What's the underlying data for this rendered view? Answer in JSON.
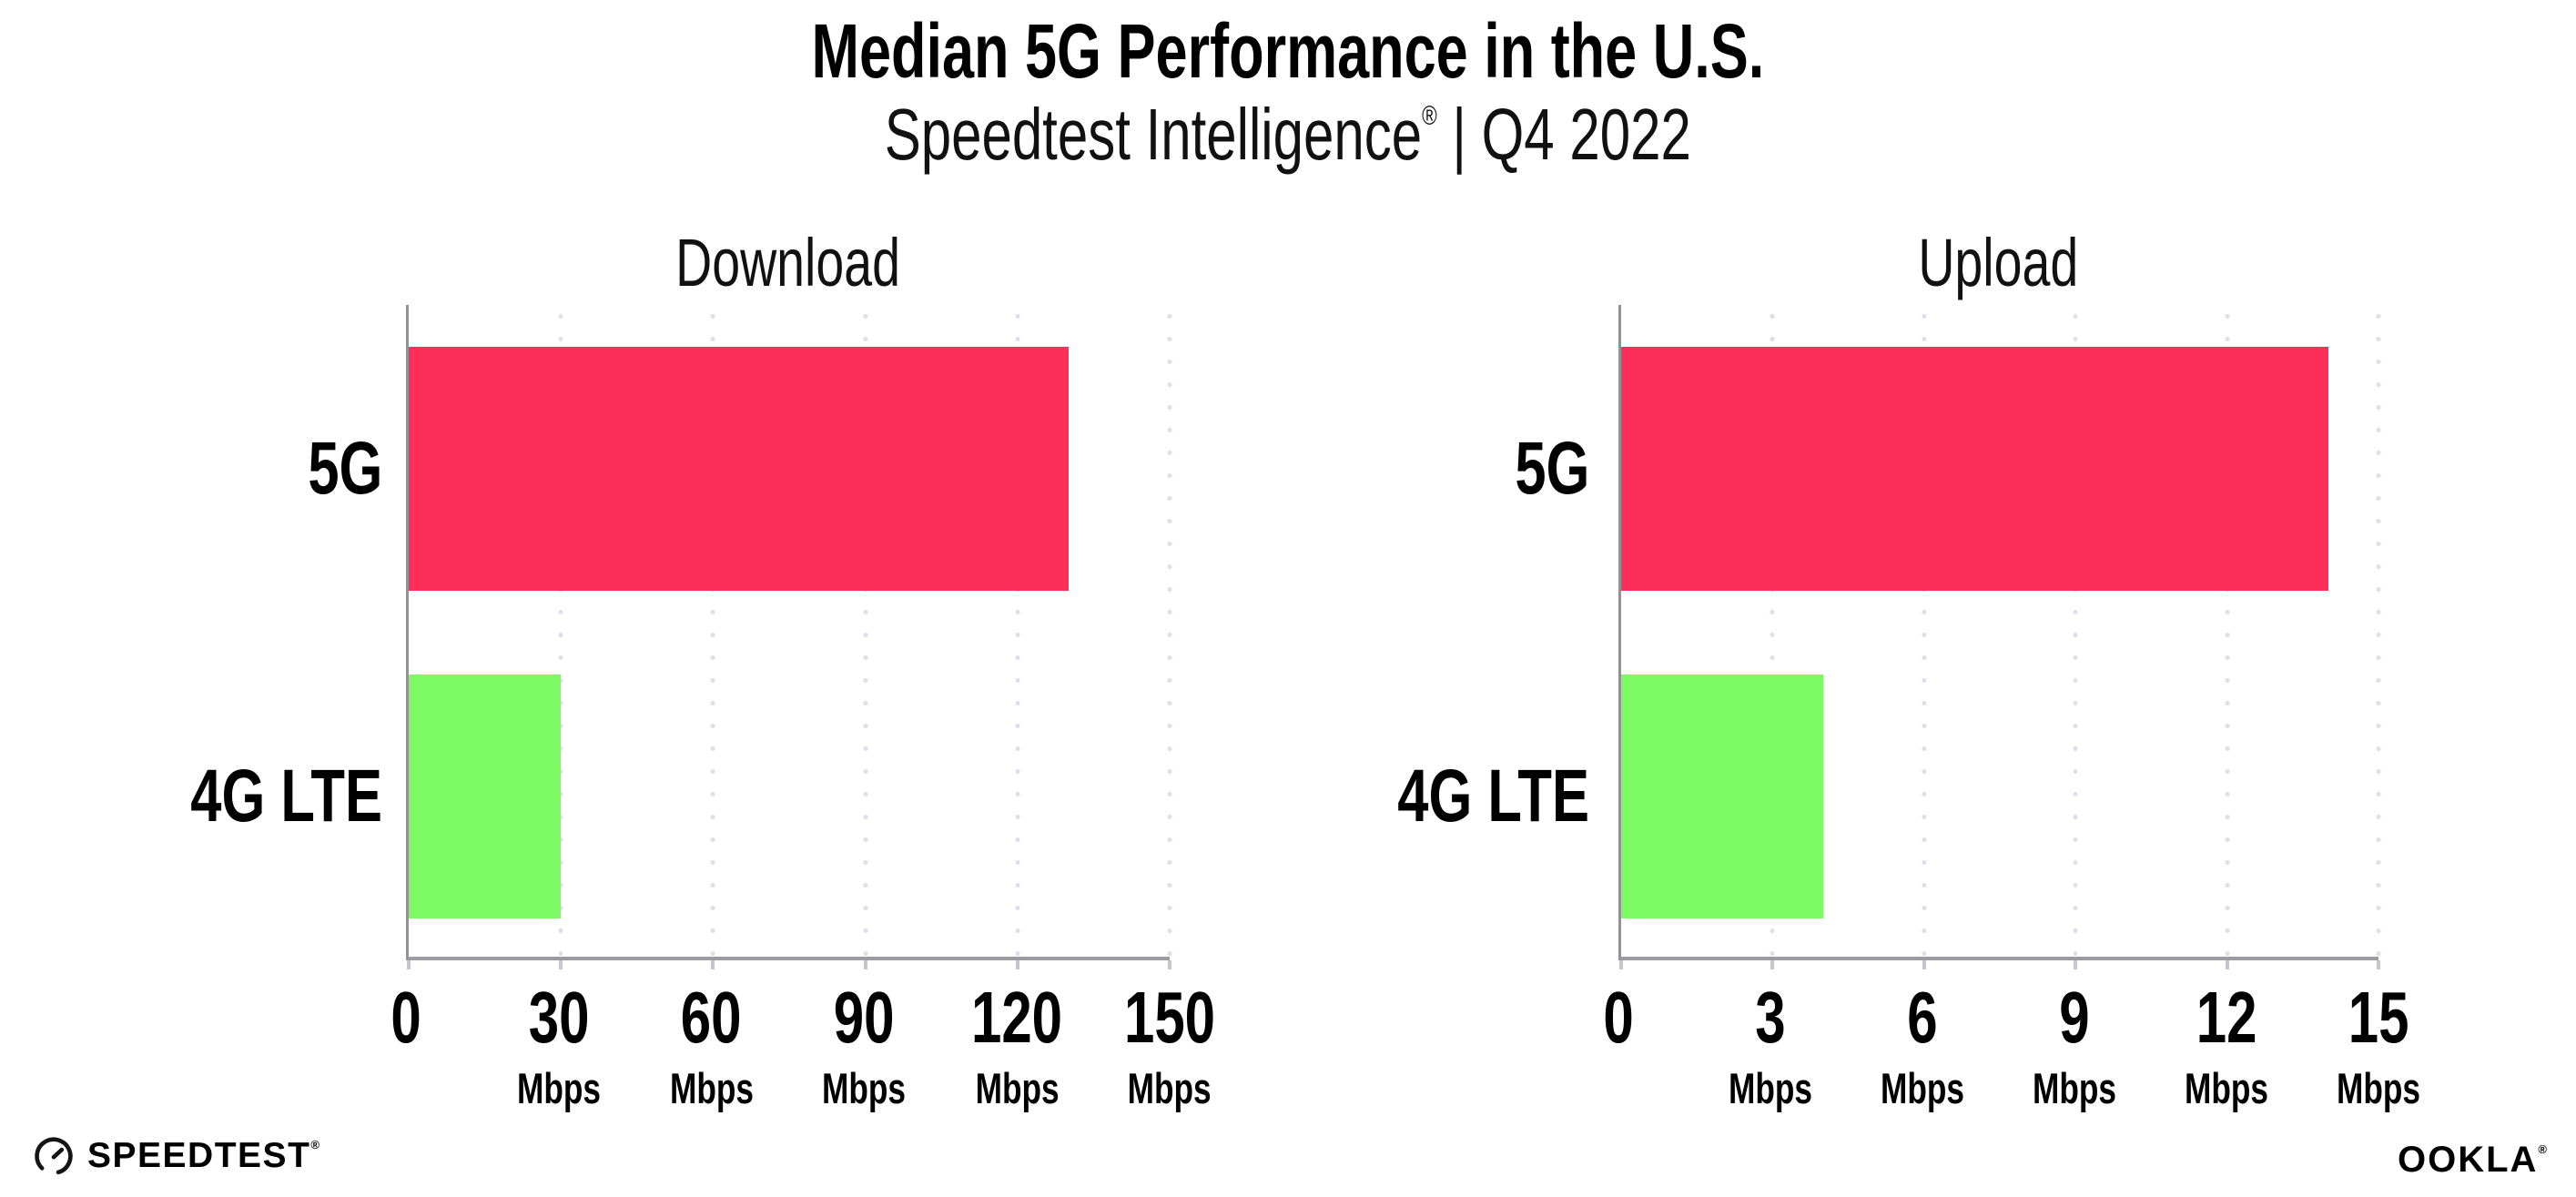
{
  "header": {
    "title": "Median 5G Performance in the U.S.",
    "subtitle_product": "Speedtest Intelligence",
    "subtitle_mark": "®",
    "subtitle_period": " | Q4 2022"
  },
  "chart_data": [
    {
      "type": "bar",
      "orientation": "horizontal",
      "title": "Download",
      "categories": [
        "5G",
        "4G LTE"
      ],
      "values": [
        130,
        30
      ],
      "unit": "Mbps",
      "xlim": [
        0,
        150
      ],
      "xticks": [
        0,
        30,
        60,
        90,
        120,
        150
      ],
      "bar_colors": [
        "#FD2E58",
        "#7EFA64"
      ],
      "grid": "vertical-dotted",
      "legend_position": "none"
    },
    {
      "type": "bar",
      "orientation": "horizontal",
      "title": "Upload",
      "categories": [
        "5G",
        "4G LTE"
      ],
      "values": [
        14,
        4
      ],
      "unit": "Mbps",
      "xlim": [
        0,
        15
      ],
      "xticks": [
        0,
        3,
        6,
        9,
        12,
        15
      ],
      "bar_colors": [
        "#FD2E58",
        "#7EFA64"
      ],
      "grid": "vertical-dotted",
      "legend_position": "none"
    }
  ],
  "footer": {
    "speedtest_logo_text": "SPEEDTEST",
    "speedtest_mark": "®",
    "ookla_logo_text": "OOKLA",
    "ookla_mark": "®"
  },
  "colors": {
    "bar_5g": "#FD2E58",
    "bar_4g_lte": "#7EFA64",
    "axis": "#919197",
    "gridline_dots": "#DFDFE9",
    "text": "#000000",
    "background": "#FFFFFF"
  }
}
